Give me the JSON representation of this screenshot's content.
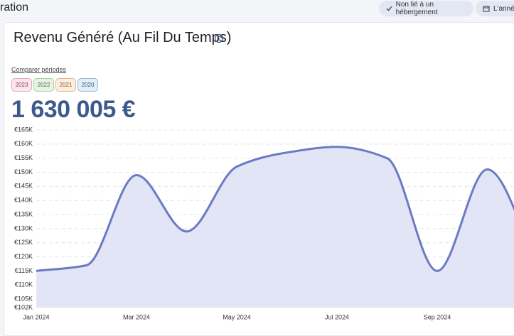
{
  "header": {
    "title": "ration",
    "filter": "Non lié à un hébergement",
    "period": "L'année"
  },
  "card": {
    "title": "Revenu Généré (Au Fil Du Temps)",
    "compare_label": "Comparer périodes",
    "compare_years": [
      "2023",
      "2022",
      "2021",
      "2020"
    ],
    "total": "1 630 005 €"
  },
  "chart_data": {
    "type": "area",
    "categories": [
      "Jan 2024",
      null,
      "Mar 2024",
      null,
      "May 2024",
      null,
      "Jul 2024",
      null,
      "Sep 2024",
      null,
      null
    ],
    "values": [
      115000,
      117000,
      149000,
      129000,
      152000,
      157000,
      159000,
      155000,
      115000,
      151000,
      118000
    ],
    "color": "#6b7bc3",
    "fill": "#e2e5f6",
    "ylim": [
      102000,
      165000
    ],
    "yticks": [
      {
        "value": 102000,
        "label": "€102K"
      },
      {
        "value": 105000,
        "label": "€105K"
      },
      {
        "value": 110000,
        "label": "€110K"
      },
      {
        "value": 115000,
        "label": "€115K"
      },
      {
        "value": 120000,
        "label": "€120K"
      },
      {
        "value": 125000,
        "label": "€125K"
      },
      {
        "value": 130000,
        "label": "€130K"
      },
      {
        "value": 135000,
        "label": "€135K"
      },
      {
        "value": 140000,
        "label": "€140K"
      },
      {
        "value": 145000,
        "label": "€145K"
      },
      {
        "value": 150000,
        "label": "€150K"
      },
      {
        "value": 155000,
        "label": "€155K"
      },
      {
        "value": 160000,
        "label": "€160K"
      },
      {
        "value": 165000,
        "label": "€165K"
      }
    ],
    "grid": true
  }
}
